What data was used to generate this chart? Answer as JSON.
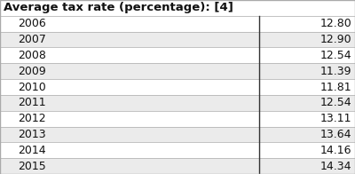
{
  "header": "Average tax rate (percentage): [4]",
  "years": [
    "2006",
    "2007",
    "2008",
    "2009",
    "2010",
    "2011",
    "2012",
    "2013",
    "2014",
    "2015"
  ],
  "values": [
    "12.80",
    "12.90",
    "12.54",
    "11.39",
    "11.81",
    "12.54",
    "13.11",
    "13.64",
    "14.16",
    "14.34"
  ],
  "col_split": 0.73,
  "bg_color": "#f5f5f5",
  "header_bg": "#ffffff",
  "row_colors": [
    "#ffffff",
    "#ebebeb"
  ],
  "border_color": "#aaaaaa",
  "vline_color": "#333333",
  "text_color": "#111111",
  "font_size": 9,
  "header_font_size": 9.5
}
